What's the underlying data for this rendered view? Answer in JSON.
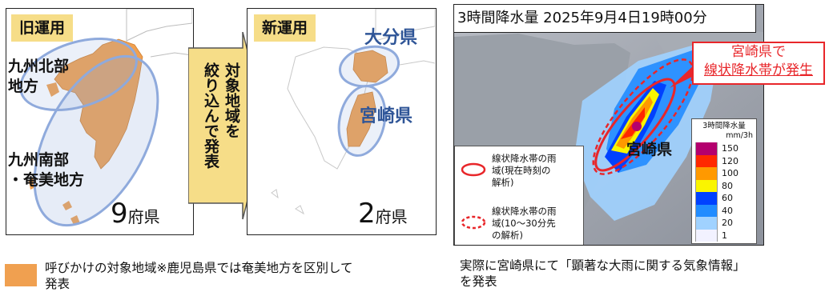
{
  "old_panel": {
    "tag": "旧運用",
    "region_north_line1": "九州北部",
    "region_north_line2": "地方",
    "region_south_line1": "九州南部",
    "region_south_line2": "・奄美地方",
    "count_number": "9",
    "count_unit": "府県"
  },
  "arrow": {
    "line1": "対象地域を",
    "line2": "絞り込んで発表"
  },
  "new_panel": {
    "tag": "新運用",
    "pref1": "大分県",
    "pref2": "宮崎県",
    "count_number": "2",
    "count_unit": "府県"
  },
  "rain_panel": {
    "title": "3時間降水量 2025年9月4日19時00分",
    "callout_line1": "宮崎県で",
    "callout_line2": "線状降水帯が発生",
    "place_label": "宮崎県",
    "legend_title": "3時間降水量",
    "legend_unit": "mm/3h",
    "legend_levels": [
      "150",
      "120",
      "100",
      "80",
      "60",
      "40",
      "20",
      "1"
    ],
    "legend_colors": [
      "#b4006e",
      "#ff2800",
      "#ff9900",
      "#faf500",
      "#0041ff",
      "#218cff",
      "#a0d2ff",
      "#f2f2ff"
    ],
    "key_solid_line1": "線状降水帯の雨",
    "key_solid_line2": "域(現在時刻の",
    "key_solid_line3": "解析)",
    "key_dashed_line1": "線状降水帯の雨",
    "key_dashed_line2": "域(10～30分先",
    "key_dashed_line3": "の解析)"
  },
  "captions": {
    "left_line1": "呼びかけの対象地域※鹿児島県では奄美地方を区別して",
    "left_line2": "発表",
    "right_line1": "実際に宮崎県にて「顕著な大雨に関する気象情報」",
    "right_line2": "を発表"
  },
  "colors": {
    "target_orange": "#f0a050",
    "ellipse_blue": "#8faadc",
    "label_blue": "#2f5597",
    "tag_yellow": "#f6dd88",
    "arrow_yellow": "#f6dd88",
    "alert_red": "#e8262a"
  }
}
